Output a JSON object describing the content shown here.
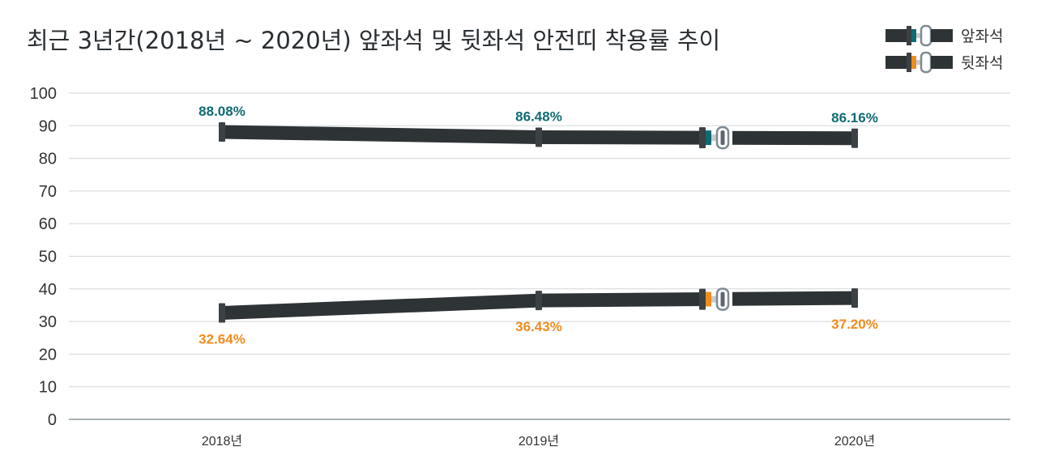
{
  "chart_data": {
    "type": "line",
    "title": "최근 3년간(2018년 ~ 2020년) 앞좌석 및 뒷좌석 안전띠 착용률 추이",
    "categories": [
      "2018년",
      "2019년",
      "2020년"
    ],
    "series": [
      {
        "name": "앞좌석",
        "values": [
          88.08,
          86.48,
          86.16
        ],
        "labels": [
          "88.08%",
          "86.48%",
          "86.16%"
        ],
        "color": "#0f6b73"
      },
      {
        "name": "뒷좌석",
        "values": [
          32.64,
          36.43,
          37.2
        ],
        "labels": [
          "32.64%",
          "36.43%",
          "37.20%"
        ],
        "color": "#f08c1e"
      }
    ],
    "y_ticks": [
      "0",
      "10",
      "20",
      "30",
      "40",
      "50",
      "60",
      "70",
      "80",
      "90",
      "100"
    ],
    "ylim": [
      0,
      100
    ],
    "grid": true,
    "legend_position": "top-right",
    "belt_color": "#2e3336",
    "buckle_color": "#7e8a92"
  }
}
